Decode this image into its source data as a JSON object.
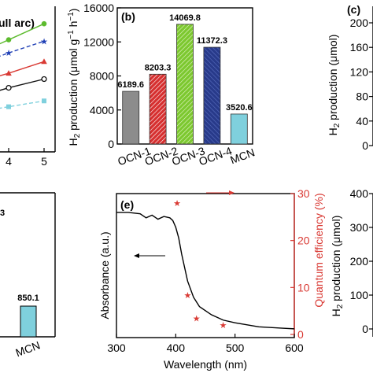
{
  "chart_data": [
    {
      "panel": "a",
      "type": "line",
      "legend_fragment": "ull arc)",
      "x_ticks": [
        "4",
        "5"
      ],
      "xlim": [
        2.75,
        5.1
      ],
      "ylim": [
        0,
        10
      ],
      "series": [
        {
          "color": "#5dbb2e",
          "marker": "circle-filled",
          "dash": "solid",
          "x": [
            3,
            4,
            5
          ],
          "y": [
            6.6,
            7.7,
            8.8
          ]
        },
        {
          "color": "#1f3fb5",
          "marker": "star",
          "dash": "dashed",
          "x": [
            3,
            4,
            5
          ],
          "y": [
            5.9,
            6.8,
            7.6
          ]
        },
        {
          "color": "#d93a34",
          "marker": "triangle",
          "dash": "solid",
          "x": [
            3,
            4,
            5
          ],
          "y": [
            4.7,
            5.4,
            6.2
          ]
        },
        {
          "color": "#111111",
          "marker": "circle-open",
          "dash": "solid",
          "x": [
            3,
            4,
            5
          ],
          "y": [
            3.7,
            4.4,
            5.0
          ]
        },
        {
          "color": "#7fd0dd",
          "marker": "square",
          "dash": "dashed",
          "x": [
            3,
            4,
            5
          ],
          "y": [
            2.7,
            3.1,
            3.5
          ]
        }
      ]
    },
    {
      "panel": "b",
      "label": "(b)",
      "type": "bar",
      "ylabel": "H2 production (μmol g⁻¹ h⁻¹)",
      "ylim": [
        0,
        16000
      ],
      "y_ticks": [
        0,
        4000,
        8000,
        12000,
        16000
      ],
      "categories": [
        "OCN-1",
        "OCN-2",
        "OCN-3",
        "OCN-4",
        "MCN"
      ],
      "values": [
        6189.6,
        8203.3,
        14069.8,
        11372.3,
        3520.6
      ],
      "value_labels": [
        "6189.6",
        "8203.3",
        "14069.8",
        "11372.3",
        "3520.6"
      ],
      "colors": [
        "#8c8c8c",
        "#d62f2f",
        "#7cc82f",
        "#283a8a",
        "#7fd0dd"
      ],
      "hatch": [
        false,
        true,
        true,
        true,
        false
      ]
    },
    {
      "panel": "c",
      "label": "(c)",
      "type": "line",
      "ylabel": "H2 production (μmol)",
      "ylim": [
        0,
        200
      ],
      "y_ticks": [
        0,
        40,
        80,
        120,
        160,
        200
      ],
      "series": []
    },
    {
      "panel": "d",
      "type": "bar",
      "visible_category": "MCN",
      "value": 850.1,
      "value_label": "850.1",
      "ylim": [
        0,
        4000
      ],
      "fragment_label": "3"
    },
    {
      "panel": "e",
      "label": "(e)",
      "type": "line",
      "xlabel": "Wavelength (nm)",
      "ylabel_left": "Absorbance (a.u.)",
      "ylabel_right": "Quantum efficiency (%)",
      "xlim": [
        300,
        600
      ],
      "x_ticks": [
        300,
        400,
        500,
        600
      ],
      "y_right_lim": [
        0,
        30
      ],
      "y_right_ticks": [
        0,
        10,
        20,
        30
      ],
      "absorbance_curve": {
        "x": [
          300,
          320,
          340,
          350,
          360,
          370,
          380,
          390,
          395,
          400,
          405,
          410,
          420,
          430,
          440,
          460,
          480,
          500,
          540,
          580,
          600
        ],
        "y": [
          0.93,
          0.93,
          0.92,
          0.89,
          0.91,
          0.88,
          0.9,
          0.89,
          0.87,
          0.82,
          0.74,
          0.62,
          0.42,
          0.3,
          0.23,
          0.17,
          0.13,
          0.11,
          0.08,
          0.07,
          0.065
        ]
      },
      "quantum_efficiency": {
        "x": [
          420,
          435,
          480
        ],
        "y": [
          8.4,
          3.4,
          2.0
        ]
      },
      "annotation_star": {
        "x": 405,
        "y": 28
      },
      "right_axis_color": "#d93a34"
    },
    {
      "panel": "f",
      "type": "line",
      "ylabel": "H2 production (μmol)",
      "ylim": [
        0,
        400
      ],
      "y_ticks": [
        0,
        100,
        200,
        300,
        400
      ],
      "series": []
    }
  ]
}
